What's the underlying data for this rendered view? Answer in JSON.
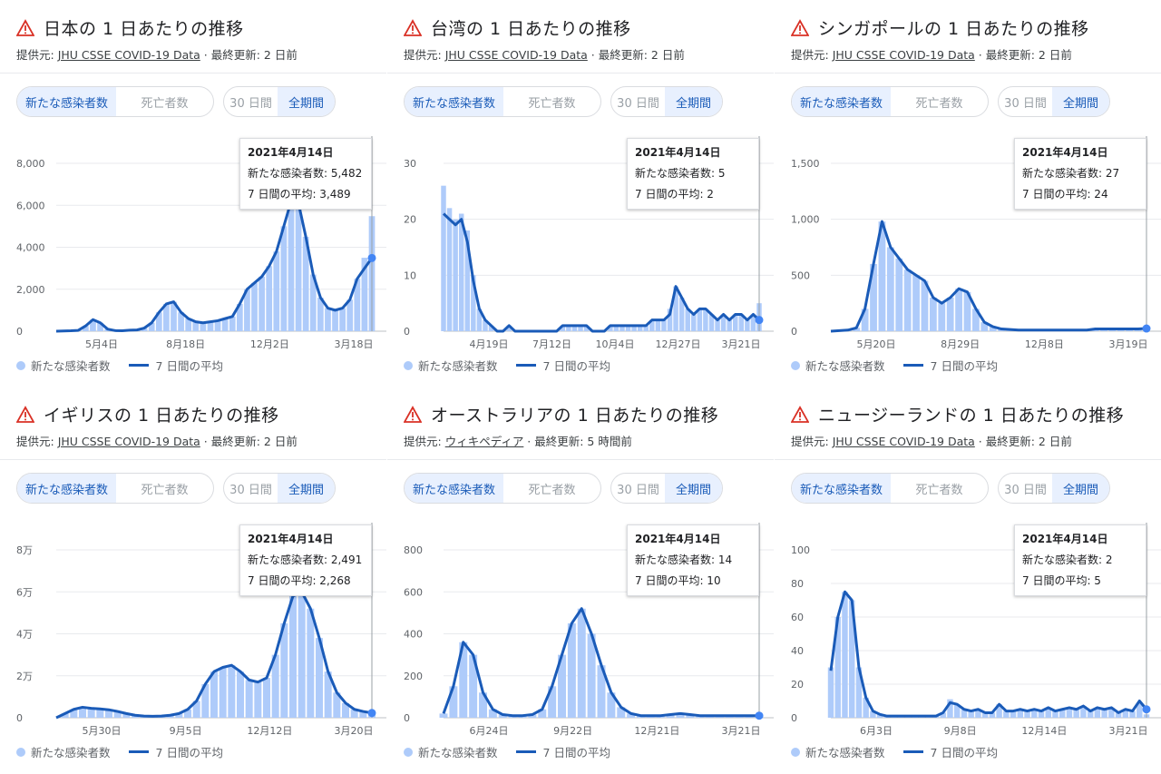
{
  "common": {
    "source_prefix": "提供元: ",
    "toggle_cases": "新たな感染者数",
    "toggle_deaths": "死亡者数",
    "toggle_30": "30 日間",
    "toggle_all": "全期間",
    "legend_cases": "新たな感染者数",
    "legend_avg": "7 日間の平均",
    "tooltip_date": "2021年4月14日"
  },
  "colors": {
    "bar": "#aecbfa",
    "line": "#1a5bb8",
    "warn": "#d93025"
  },
  "panels": [
    {
      "title": "日本の 1 日あたりの推移",
      "source_link": "JHU CSSE COVID-19 Data",
      "updated": " · 最終更新: 2 日前",
      "tooltip_cases": "新たな感染者数: 5,482",
      "tooltip_avg": "7 日間の平均: 3,489"
    },
    {
      "title": "台湾の 1 日あたりの推移",
      "source_link": "JHU CSSE COVID-19 Data",
      "updated": " · 最終更新: 2 日前",
      "tooltip_cases": "新たな感染者数: 5",
      "tooltip_avg": "7 日間の平均: 2"
    },
    {
      "title": "シンガポールの 1 日あたりの推移",
      "source_link": "JHU CSSE COVID-19 Data",
      "updated": " · 最終更新: 2 日前",
      "tooltip_cases": "新たな感染者数: 27",
      "tooltip_avg": "7 日間の平均: 24"
    },
    {
      "title": "イギリスの 1 日あたりの推移",
      "source_link": "JHU CSSE COVID-19 Data",
      "updated": " · 最終更新: 2 日前",
      "tooltip_cases": "新たな感染者数: 2,491",
      "tooltip_avg": "7 日間の平均: 2,268"
    },
    {
      "title": "オーストラリアの 1 日あたりの推移",
      "source_link": "ウィキペディア",
      "updated": " · 最終更新: 5 時間前",
      "tooltip_cases": "新たな感染者数: 14",
      "tooltip_avg": "7 日間の平均: 10"
    },
    {
      "title": "ニュージーランドの 1 日あたりの推移",
      "source_link": "JHU CSSE COVID-19 Data",
      "updated": " · 最終更新: 2 日前",
      "tooltip_cases": "新たな感染者数: 2",
      "tooltip_avg": "7 日間の平均: 5"
    }
  ],
  "chart_data": [
    {
      "type": "bar",
      "ylim": [
        0,
        8000
      ],
      "yticks": [
        "0",
        "2,000",
        "4,000",
        "6,000",
        "8,000"
      ],
      "xticks": [
        "5月4日",
        "8月18日",
        "12月2日",
        "3月18日"
      ],
      "series": [
        {
          "name": "新たな感染者数",
          "values": [
            0,
            10,
            20,
            40,
            250,
            550,
            400,
            100,
            30,
            20,
            50,
            60,
            150,
            400,
            900,
            1300,
            1400,
            900,
            600,
            450,
            400,
            450,
            500,
            600,
            700,
            1300,
            2000,
            2300,
            2600,
            3100,
            3800,
            5000,
            6200,
            6100,
            4500,
            2700,
            1600,
            1100,
            1000,
            1100,
            1500,
            2500,
            3500,
            5482
          ]
        },
        {
          "name": "7 日間の平均",
          "values": [
            0,
            10,
            20,
            40,
            250,
            550,
            400,
            100,
            30,
            20,
            50,
            60,
            150,
            400,
            900,
            1300,
            1400,
            900,
            600,
            450,
            400,
            450,
            500,
            600,
            700,
            1300,
            2000,
            2300,
            2600,
            3100,
            3800,
            5000,
            6200,
            6100,
            4500,
            2700,
            1600,
            1100,
            1000,
            1100,
            1500,
            2500,
            3000,
            3489
          ]
        }
      ]
    },
    {
      "type": "bar",
      "ylim": [
        0,
        30
      ],
      "yticks": [
        "0",
        "10",
        "20",
        "30"
      ],
      "xticks": [
        "4月19日",
        "7月12日",
        "10月4日",
        "12月27日",
        "3月21日"
      ],
      "series": [
        {
          "name": "新たな感染者数",
          "values": [
            26,
            22,
            20,
            21,
            18,
            10,
            4,
            2,
            1,
            0,
            0,
            1,
            0,
            0,
            0,
            0,
            0,
            0,
            0,
            0,
            1,
            1,
            1,
            1,
            1,
            0,
            0,
            0,
            1,
            1,
            1,
            1,
            1,
            1,
            1,
            2,
            2,
            2,
            4,
            8,
            6,
            4,
            3,
            4,
            4,
            3,
            2,
            3,
            2,
            3,
            3,
            2,
            3,
            5
          ]
        },
        {
          "name": "7 日間の平均",
          "values": [
            21,
            20,
            19,
            20,
            16,
            9,
            4,
            2,
            1,
            0,
            0,
            1,
            0,
            0,
            0,
            0,
            0,
            0,
            0,
            0,
            1,
            1,
            1,
            1,
            1,
            0,
            0,
            0,
            1,
            1,
            1,
            1,
            1,
            1,
            1,
            2,
            2,
            2,
            3,
            8,
            6,
            4,
            3,
            4,
            4,
            3,
            2,
            3,
            2,
            3,
            3,
            2,
            3,
            2
          ]
        }
      ]
    },
    {
      "type": "bar",
      "ylim": [
        0,
        1500
      ],
      "yticks": [
        "0",
        "500",
        "1,000",
        "1,500"
      ],
      "xticks": [
        "5月20日",
        "8月29日",
        "12月8日",
        "3月19日"
      ],
      "series": [
        {
          "name": "新たな感染者数",
          "values": [
            0,
            5,
            10,
            30,
            200,
            600,
            980,
            750,
            650,
            550,
            500,
            450,
            300,
            250,
            300,
            380,
            350,
            200,
            80,
            40,
            20,
            15,
            10,
            10,
            10,
            10,
            10,
            10,
            10,
            10,
            10,
            20,
            20,
            20,
            20,
            20,
            20,
            27
          ]
        },
        {
          "name": "7 日間の平均",
          "values": [
            0,
            5,
            10,
            30,
            200,
            600,
            980,
            750,
            650,
            550,
            500,
            450,
            300,
            250,
            300,
            380,
            350,
            200,
            80,
            40,
            20,
            15,
            10,
            10,
            10,
            10,
            10,
            10,
            10,
            10,
            10,
            20,
            20,
            20,
            20,
            20,
            20,
            24
          ]
        }
      ]
    },
    {
      "type": "bar",
      "ylim": [
        0,
        80000
      ],
      "yticks": [
        "0",
        "2万",
        "4万",
        "6万",
        "8万"
      ],
      "xticks": [
        "5月30日",
        "9月5日",
        "12月12日",
        "3月20日"
      ],
      "series": [
        {
          "name": "新たな感染者数",
          "values": [
            0,
            2000,
            4000,
            5000,
            4500,
            4200,
            3800,
            3000,
            2000,
            1200,
            800,
            700,
            800,
            1200,
            2000,
            4000,
            8000,
            16000,
            22000,
            24000,
            25000,
            22000,
            18000,
            17000,
            19000,
            30000,
            45000,
            58000,
            62000,
            52000,
            38000,
            22000,
            12000,
            7000,
            4000,
            3000,
            2491
          ]
        },
        {
          "name": "7 日間の平均",
          "values": [
            0,
            2000,
            4000,
            5000,
            4500,
            4200,
            3800,
            3000,
            2000,
            1200,
            800,
            700,
            800,
            1200,
            2000,
            4000,
            8000,
            16000,
            22000,
            24000,
            25000,
            22000,
            18000,
            17000,
            19000,
            30000,
            45000,
            58000,
            60000,
            52000,
            38000,
            22000,
            12000,
            7000,
            4000,
            3000,
            2268
          ]
        }
      ]
    },
    {
      "type": "bar",
      "ylim": [
        0,
        800
      ],
      "yticks": [
        "0",
        "200",
        "400",
        "600",
        "800"
      ],
      "xticks": [
        "6月24日",
        "9月22日",
        "12月21日",
        "3月21日"
      ],
      "series": [
        {
          "name": "新たな感染者数",
          "values": [
            20,
            150,
            360,
            300,
            120,
            40,
            15,
            10,
            10,
            15,
            40,
            150,
            300,
            450,
            520,
            400,
            250,
            120,
            50,
            20,
            10,
            10,
            10,
            15,
            20,
            15,
            10,
            10,
            10,
            10,
            10,
            10,
            14
          ]
        },
        {
          "name": "7 日間の平均",
          "values": [
            20,
            150,
            360,
            300,
            120,
            40,
            15,
            10,
            10,
            15,
            40,
            150,
            300,
            450,
            520,
            400,
            250,
            120,
            50,
            20,
            10,
            10,
            10,
            15,
            20,
            15,
            10,
            10,
            10,
            10,
            10,
            10,
            10
          ]
        }
      ]
    },
    {
      "type": "bar",
      "ylim": [
        0,
        100
      ],
      "yticks": [
        "0",
        "20",
        "40",
        "60",
        "80",
        "100"
      ],
      "xticks": [
        "6月3日",
        "9月8日",
        "12月14日",
        "3月21日"
      ],
      "series": [
        {
          "name": "新たな感染者数",
          "values": [
            30,
            60,
            75,
            70,
            30,
            12,
            4,
            2,
            1,
            1,
            1,
            1,
            1,
            1,
            1,
            1,
            3,
            11,
            8,
            5,
            4,
            5,
            3,
            3,
            8,
            4,
            4,
            5,
            4,
            5,
            4,
            6,
            4,
            5,
            6,
            5,
            7,
            4,
            6,
            5,
            6,
            3,
            5,
            4,
            9,
            2
          ]
        },
        {
          "name": "7 日間の平均",
          "values": [
            28,
            60,
            75,
            70,
            30,
            12,
            4,
            2,
            1,
            1,
            1,
            1,
            1,
            1,
            1,
            1,
            3,
            9,
            8,
            5,
            4,
            5,
            3,
            3,
            8,
            4,
            4,
            5,
            4,
            5,
            4,
            6,
            4,
            5,
            6,
            5,
            7,
            4,
            6,
            5,
            6,
            3,
            5,
            4,
            10,
            5
          ]
        }
      ]
    }
  ]
}
